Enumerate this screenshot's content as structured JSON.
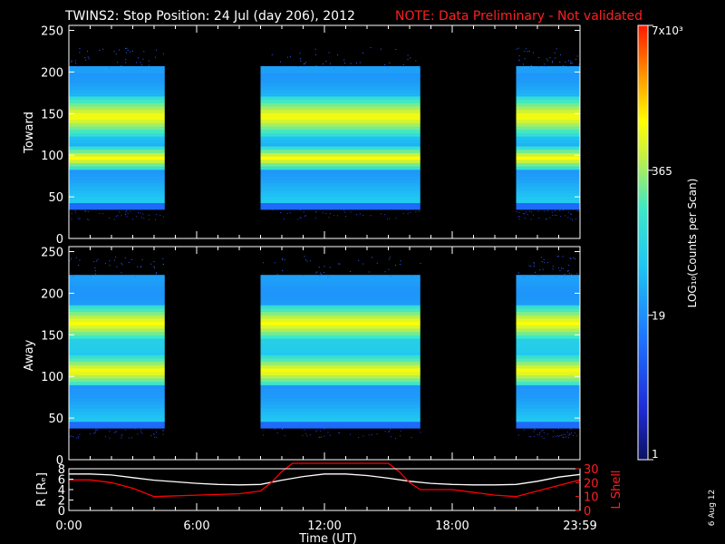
{
  "title": "TWINS2: Stop Position: 24 Jul (day 206), 2012",
  "note": "NOTE: Data Preliminary - Not validated",
  "date_stamp": "6 Aug 12",
  "colorbar": {
    "label": "LOG₁₀(Counts per Scan)",
    "ticks": [
      "7x10³",
      "365",
      "19",
      "1"
    ],
    "tick_values": [
      7000,
      365,
      19,
      1
    ]
  },
  "chart_data": [
    {
      "type": "heatmap",
      "panel": "top",
      "ylabel": "Toward",
      "ylim": [
        0,
        256
      ],
      "yticks": [
        "0",
        "50",
        "100",
        "150",
        "200",
        "250"
      ],
      "x_range_hours": [
        0,
        24
      ],
      "data_blocks_hours": [
        [
          0,
          4.5
        ],
        [
          9.0,
          16.5
        ],
        [
          21.0,
          24.0
        ]
      ],
      "bright_bands": [
        [
          90,
          100
        ],
        [
          130,
          160
        ]
      ],
      "band_top": 205,
      "band_bottom": 35
    },
    {
      "type": "heatmap",
      "panel": "middle",
      "ylabel": "Away",
      "ylim": [
        0,
        256
      ],
      "yticks": [
        "0",
        "50",
        "100",
        "150",
        "200",
        "250"
      ],
      "x_range_hours": [
        0,
        24
      ],
      "data_blocks_hours": [
        [
          0,
          4.5
        ],
        [
          9.0,
          16.5
        ],
        [
          21.0,
          24.0
        ]
      ],
      "bright_bands": [
        [
          95,
          115
        ],
        [
          150,
          175
        ]
      ],
      "band_top": 220,
      "band_bottom": 38
    },
    {
      "type": "line",
      "panel": "bottom",
      "xlabel": "Time (UT)",
      "xticks": [
        "0:00",
        "6:00",
        "12:00",
        "18:00",
        "23:59"
      ],
      "ylabel_left": "R [Rₑ]",
      "ylim_left": [
        0,
        8
      ],
      "yticks_left": [
        "0",
        "2",
        "4",
        "6",
        "8"
      ],
      "ylabel_right": "L Shell",
      "ylim_right": [
        0,
        30
      ],
      "yticks_right": [
        "0",
        "10",
        "20",
        "30"
      ],
      "series": [
        {
          "color": "#ffffff",
          "axis": "left",
          "x": [
            0,
            1,
            2,
            3,
            4,
            5,
            6,
            7,
            8,
            9,
            10,
            11,
            12,
            13,
            14,
            15,
            16,
            17,
            18,
            19,
            20,
            21,
            22,
            23,
            24
          ],
          "values": [
            7.0,
            7.0,
            6.8,
            6.3,
            5.8,
            5.5,
            5.2,
            5.0,
            4.9,
            5.0,
            5.8,
            6.5,
            7.0,
            7.0,
            6.7,
            6.2,
            5.6,
            5.2,
            5.0,
            4.9,
            4.9,
            5.0,
            5.6,
            6.4,
            6.9
          ]
        },
        {
          "color": "#ff0000",
          "axis": "right",
          "x": [
            0,
            1,
            2,
            3,
            4,
            6,
            8,
            9,
            9.5,
            10,
            10.5,
            15,
            15.5,
            16,
            16.5,
            18,
            20,
            21,
            22,
            23,
            24
          ],
          "values": [
            22,
            22,
            20,
            16,
            10,
            11,
            12,
            14,
            20,
            28,
            34,
            34,
            28,
            20,
            15,
            15,
            11,
            10,
            14,
            18,
            22
          ]
        }
      ]
    }
  ]
}
